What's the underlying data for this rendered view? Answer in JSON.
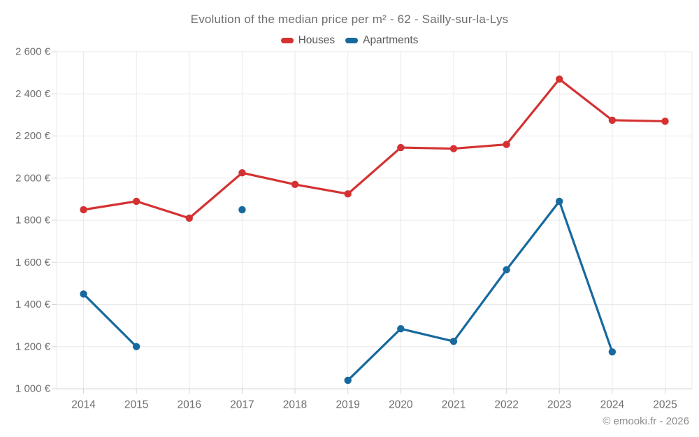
{
  "title": "Evolution of the median price per m² - 62 - Sailly-sur-la-Lys",
  "footer": {
    "text": "© emooki.fr - 2026"
  },
  "chart_data": {
    "type": "line",
    "title": "Evolution of the median price per m² - 62 - Sailly-sur-la-Lys",
    "x": [
      2014,
      2015,
      2016,
      2017,
      2018,
      2019,
      2020,
      2021,
      2022,
      2023,
      2024,
      2025
    ],
    "series": [
      {
        "name": "Houses",
        "color": "#d43232",
        "values": [
          1850,
          1890,
          1810,
          2025,
          1970,
          1925,
          2145,
          2140,
          2160,
          2470,
          2275,
          2270
        ]
      },
      {
        "name": "Apartments",
        "color": "#17699e",
        "values": [
          1450,
          1200,
          null,
          1850,
          null,
          1040,
          1285,
          1225,
          1565,
          1890,
          1175,
          null
        ]
      }
    ],
    "xlabel": "",
    "ylabel": "",
    "ylim": [
      1000,
      2600
    ],
    "ytick_step": 200,
    "ytick_suffix": " €",
    "grid": true,
    "legend_position": "top"
  },
  "colors": {
    "grid": "#e9e9e9",
    "axis": "#d5d5d5",
    "tick_label": "#6e6e6e",
    "title": "#6e6e6e",
    "legend_label": "#595959",
    "footer": "#8c8c8c",
    "background": "#ffffff"
  }
}
